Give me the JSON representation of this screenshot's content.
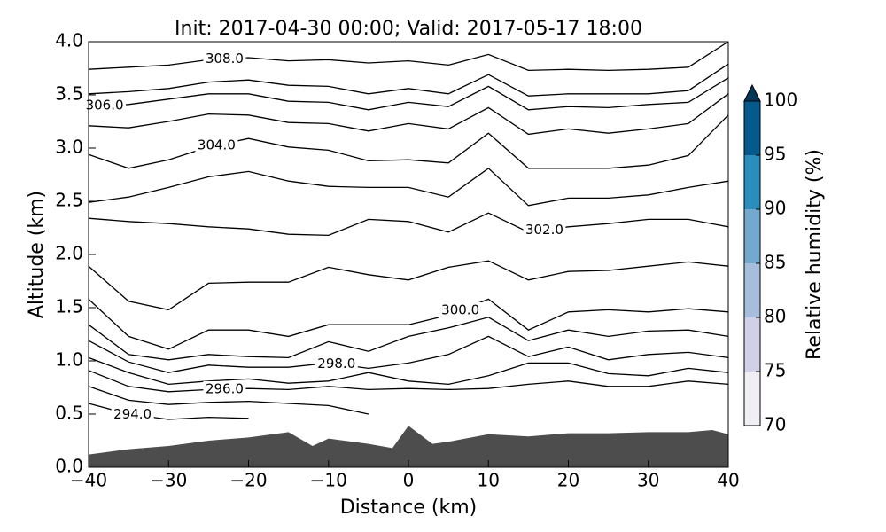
{
  "chart_data": {
    "type": "contour",
    "title": "Init: 2017-04-30 00:00; Valid: 2017-05-17 18:00",
    "xlabel": "Distance (km)",
    "ylabel": "Altitude (km)",
    "xlim": [
      -40,
      40
    ],
    "ylim": [
      0,
      4
    ],
    "xticks": [
      {
        "value": -40,
        "label": "−40"
      },
      {
        "value": -30,
        "label": "−30"
      },
      {
        "value": -20,
        "label": "−20"
      },
      {
        "value": -10,
        "label": "−10"
      },
      0,
      10,
      20,
      30,
      40
    ],
    "yticks": [
      {
        "value": 0,
        "label": "0.0"
      },
      0.5,
      {
        "value": 1,
        "label": "1.0"
      },
      1.5,
      {
        "value": 2,
        "label": "2.0"
      },
      2.5,
      {
        "value": 3,
        "label": "3.0"
      },
      3.5,
      {
        "value": 4,
        "label": "4.0"
      }
    ],
    "x": [
      -40,
      -35,
      -30,
      -25,
      -20,
      -15,
      -10,
      -5,
      0,
      5,
      10,
      15,
      20,
      25,
      30,
      35,
      40
    ],
    "contour_color": "#000000",
    "contours": [
      {
        "label": "308.0",
        "values": [
          3.74,
          3.76,
          3.78,
          3.83,
          3.85,
          3.82,
          3.83,
          3.8,
          3.82,
          3.78,
          3.88,
          3.73,
          3.74,
          3.73,
          3.74,
          3.76,
          4.0
        ]
      },
      {
        "values": [
          3.51,
          3.53,
          3.56,
          3.62,
          3.64,
          3.59,
          3.58,
          3.51,
          3.56,
          3.51,
          3.69,
          3.49,
          3.51,
          3.51,
          3.51,
          3.54,
          3.79
        ]
      },
      {
        "label": "306.0",
        "values": [
          3.39,
          3.41,
          3.46,
          3.51,
          3.51,
          3.44,
          3.43,
          3.36,
          3.43,
          3.39,
          3.58,
          3.36,
          3.39,
          3.38,
          3.41,
          3.43,
          3.66
        ]
      },
      {
        "values": [
          3.21,
          3.19,
          3.25,
          3.32,
          3.31,
          3.24,
          3.23,
          3.16,
          3.23,
          3.18,
          3.38,
          3.13,
          3.18,
          3.14,
          3.18,
          3.23,
          3.51
        ]
      },
      {
        "label": "304.0",
        "values": [
          2.94,
          2.81,
          2.89,
          3.01,
          3.09,
          3.01,
          2.98,
          2.88,
          2.89,
          2.86,
          3.14,
          2.81,
          2.81,
          2.81,
          2.84,
          2.93,
          3.31
        ]
      },
      {
        "values": [
          2.49,
          2.54,
          2.63,
          2.73,
          2.78,
          2.69,
          2.64,
          2.63,
          2.63,
          2.54,
          2.81,
          2.46,
          2.53,
          2.53,
          2.56,
          2.63,
          2.69
        ]
      },
      {
        "label": "302.0",
        "values": [
          2.34,
          2.31,
          2.29,
          2.26,
          2.24,
          2.19,
          2.18,
          2.33,
          2.31,
          2.21,
          2.39,
          2.21,
          2.26,
          2.29,
          2.33,
          2.33,
          2.26
        ]
      },
      {
        "values": [
          1.89,
          1.56,
          1.48,
          1.73,
          1.74,
          1.74,
          1.88,
          1.81,
          1.76,
          1.88,
          1.94,
          1.76,
          1.84,
          1.85,
          1.89,
          1.93,
          1.89
        ]
      },
      {
        "label": "300.0",
        "values": [
          1.58,
          1.23,
          1.11,
          1.29,
          1.29,
          1.23,
          1.34,
          1.34,
          1.34,
          1.43,
          1.58,
          1.29,
          1.46,
          1.48,
          1.46,
          1.49,
          1.46
        ]
      },
      {
        "values": [
          1.34,
          1.06,
          1.01,
          1.06,
          1.04,
          1.03,
          1.18,
          1.09,
          1.23,
          1.31,
          1.41,
          1.19,
          1.29,
          1.23,
          1.28,
          1.29,
          1.23
        ]
      },
      {
        "label": "298.0",
        "values": [
          1.19,
          0.99,
          0.89,
          0.96,
          0.94,
          0.94,
          0.98,
          0.93,
          0.98,
          1.06,
          1.23,
          1.04,
          1.13,
          1.01,
          1.06,
          1.08,
          1.03
        ]
      },
      {
        "values": [
          1.03,
          0.89,
          0.78,
          0.81,
          0.83,
          0.79,
          0.81,
          0.89,
          0.81,
          0.78,
          0.86,
          0.98,
          0.98,
          0.88,
          0.86,
          0.93,
          0.89
        ]
      },
      {
        "label": "296.0",
        "values": [
          0.91,
          0.76,
          0.71,
          0.73,
          0.74,
          0.73,
          0.76,
          0.73,
          0.74,
          0.73,
          0.74,
          0.78,
          0.81,
          0.76,
          0.76,
          0.81,
          0.78
        ]
      },
      {
        "values": [
          0.76,
          0.63,
          0.59,
          0.61,
          0.62,
          0.6,
          0.58,
          0.5,
          null,
          null,
          null,
          null,
          null,
          null,
          null,
          null,
          null
        ]
      },
      {
        "label": "294.0",
        "values": [
          0.6,
          0.5,
          0.45,
          0.47,
          0.46,
          null,
          null,
          null,
          null,
          null,
          null,
          null,
          null,
          null,
          null,
          null,
          null
        ]
      }
    ],
    "terrain": {
      "color": "#4d4d4d",
      "x": [
        -40,
        -35,
        -30,
        -25,
        -20,
        -15,
        -12,
        -10,
        -5,
        -2,
        0,
        3,
        5,
        10,
        15,
        20,
        25,
        30,
        35,
        38,
        40
      ],
      "values": [
        0.12,
        0.17,
        0.2,
        0.25,
        0.28,
        0.33,
        0.2,
        0.27,
        0.22,
        0.18,
        0.39,
        0.22,
        0.24,
        0.31,
        0.29,
        0.32,
        0.32,
        0.33,
        0.33,
        0.35,
        0.31
      ]
    },
    "colorbar": {
      "label": "Relative humidity (%)",
      "lim": [
        70,
        100
      ],
      "ticks": [
        70,
        75,
        80,
        85,
        90,
        95,
        100
      ],
      "colors": [
        "#f1eef6",
        "#d0d1e6",
        "#a6bddb",
        "#74a9cf",
        "#2b8cbe",
        "#045a8d"
      ],
      "extend_color": "#023858"
    }
  }
}
